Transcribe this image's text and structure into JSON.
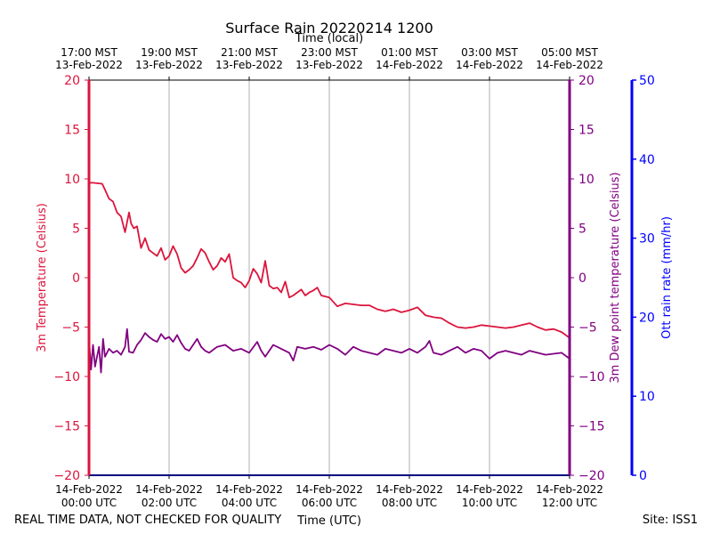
{
  "chart_data": {
    "type": "line",
    "title": "Surface Rain 20220214 1200",
    "top_xlabel": "Time (local)",
    "xlabel": "Time (UTC)",
    "ylabel_left": "3m Temperature (Celsius)",
    "ylabel_right1": "3m Dew point temperature (Celsius)",
    "ylabel_right2": "Ott rain rate (mm/hr)",
    "footer_left": "REAL TIME DATA, NOT CHECKED FOR QUALITY",
    "footer_right": "Site: ISS1",
    "xlim_hours": [
      0,
      12
    ],
    "ylim": [
      -20,
      20
    ],
    "y_ticks": [
      -20,
      -15,
      -10,
      -5,
      0,
      5,
      10,
      15,
      20
    ],
    "rain_ylim": [
      0,
      50
    ],
    "rain_ticks": [
      0,
      10,
      20,
      30,
      40,
      50
    ],
    "grid_x": true,
    "bottom_ticks": [
      {
        "h": 0,
        "line1": "14-Feb-2022",
        "line2": "00:00 UTC"
      },
      {
        "h": 2,
        "line1": "14-Feb-2022",
        "line2": "02:00 UTC"
      },
      {
        "h": 4,
        "line1": "14-Feb-2022",
        "line2": "04:00 UTC"
      },
      {
        "h": 6,
        "line1": "14-Feb-2022",
        "line2": "06:00 UTC"
      },
      {
        "h": 8,
        "line1": "14-Feb-2022",
        "line2": "08:00 UTC"
      },
      {
        "h": 10,
        "line1": "14-Feb-2022",
        "line2": "10:00 UTC"
      },
      {
        "h": 12,
        "line1": "14-Feb-2022",
        "line2": "12:00 UTC"
      }
    ],
    "top_ticks": [
      {
        "h": 0,
        "line1": "17:00 MST",
        "line2": "13-Feb-2022"
      },
      {
        "h": 2,
        "line1": "19:00 MST",
        "line2": "13-Feb-2022"
      },
      {
        "h": 4,
        "line1": "21:00 MST",
        "line2": "13-Feb-2022"
      },
      {
        "h": 6,
        "line1": "23:00 MST",
        "line2": "13-Feb-2022"
      },
      {
        "h": 8,
        "line1": "01:00 MST",
        "line2": "14-Feb-2022"
      },
      {
        "h": 10,
        "line1": "03:00 MST",
        "line2": "14-Feb-2022"
      },
      {
        "h": 12,
        "line1": "05:00 MST",
        "line2": "14-Feb-2022"
      }
    ],
    "colors": {
      "temperature": "#dc143c",
      "dewpoint": "#800080",
      "rain": "#0000ff",
      "grid": "#b0b0b0"
    },
    "series": [
      {
        "name": "3m Temperature",
        "color": "#dc143c",
        "x": [
          0,
          0.1,
          0.33,
          0.4,
          0.5,
          0.6,
          0.7,
          0.8,
          0.9,
          1.0,
          1.05,
          1.12,
          1.2,
          1.3,
          1.4,
          1.5,
          1.6,
          1.7,
          1.8,
          1.9,
          2.0,
          2.1,
          2.2,
          2.3,
          2.4,
          2.5,
          2.6,
          2.7,
          2.8,
          2.9,
          3.0,
          3.1,
          3.2,
          3.3,
          3.4,
          3.5,
          3.6,
          3.7,
          3.8,
          3.9,
          4.0,
          4.1,
          4.2,
          4.3,
          4.4,
          4.5,
          4.6,
          4.7,
          4.8,
          4.9,
          5.0,
          5.1,
          5.2,
          5.3,
          5.4,
          5.5,
          5.6,
          5.7,
          5.8,
          5.9,
          6.0,
          6.2,
          6.4,
          6.6,
          6.8,
          7.0,
          7.2,
          7.4,
          7.6,
          7.8,
          8.0,
          8.2,
          8.4,
          8.6,
          8.8,
          9.0,
          9.2,
          9.4,
          9.6,
          9.8,
          10.0,
          10.2,
          10.4,
          10.6,
          10.8,
          11.0,
          11.2,
          11.4,
          11.6,
          11.8,
          12.0
        ],
        "values": [
          9.6,
          9.6,
          9.5,
          8.9,
          8.0,
          7.7,
          6.6,
          6.2,
          4.6,
          6.6,
          5.5,
          5.0,
          5.2,
          3.0,
          4.0,
          2.8,
          2.5,
          2.2,
          3.0,
          1.8,
          2.2,
          3.2,
          2.4,
          1.0,
          0.5,
          0.8,
          1.2,
          2.0,
          2.9,
          2.5,
          1.6,
          0.8,
          1.2,
          2.0,
          1.6,
          2.4,
          0.0,
          -0.3,
          -0.5,
          -1.0,
          -0.3,
          0.9,
          0.4,
          -0.5,
          1.7,
          -0.8,
          -1.1,
          -1.0,
          -1.5,
          -0.4,
          -2.0,
          -1.8,
          -1.5,
          -1.2,
          -1.8,
          -1.5,
          -1.3,
          -1.0,
          -1.8,
          -1.9,
          -2.0,
          -2.9,
          -2.6,
          -2.7,
          -2.8,
          -2.8,
          -3.2,
          -3.4,
          -3.2,
          -3.5,
          -3.3,
          -3.0,
          -3.8,
          -4.0,
          -4.1,
          -4.6,
          -5.0,
          -5.1,
          -5.0,
          -4.8,
          -4.9,
          -5.0,
          -5.1,
          -5.0,
          -4.8,
          -4.6,
          -5.0,
          -5.3,
          -5.2,
          -5.5,
          -6.1
        ]
      },
      {
        "name": "3m Dew point temperature",
        "color": "#800080",
        "x": [
          0,
          0.05,
          0.1,
          0.15,
          0.2,
          0.25,
          0.3,
          0.35,
          0.4,
          0.5,
          0.6,
          0.7,
          0.8,
          0.9,
          0.95,
          1.0,
          1.1,
          1.2,
          1.3,
          1.4,
          1.5,
          1.6,
          1.7,
          1.8,
          1.9,
          2.0,
          2.1,
          2.2,
          2.3,
          2.4,
          2.5,
          2.6,
          2.7,
          2.8,
          2.9,
          3.0,
          3.2,
          3.4,
          3.6,
          3.8,
          4.0,
          4.2,
          4.3,
          4.4,
          4.6,
          4.8,
          5.0,
          5.1,
          5.2,
          5.4,
          5.6,
          5.8,
          6.0,
          6.2,
          6.4,
          6.6,
          6.8,
          7.0,
          7.2,
          7.4,
          7.6,
          7.8,
          8.0,
          8.2,
          8.4,
          8.5,
          8.6,
          8.8,
          9.0,
          9.2,
          9.4,
          9.6,
          9.8,
          10.0,
          10.2,
          10.4,
          10.6,
          10.8,
          11.0,
          11.2,
          11.4,
          11.6,
          11.8,
          12.0
        ],
        "values": [
          -6.2,
          -9.3,
          -6.8,
          -9.0,
          -8.0,
          -7.0,
          -9.6,
          -6.2,
          -8.0,
          -7.2,
          -7.6,
          -7.4,
          -7.8,
          -7.0,
          -5.2,
          -7.5,
          -7.6,
          -6.8,
          -6.3,
          -5.6,
          -6.0,
          -6.3,
          -6.5,
          -5.7,
          -6.2,
          -6.0,
          -6.5,
          -5.8,
          -6.6,
          -7.2,
          -7.4,
          -6.8,
          -6.2,
          -7.0,
          -7.4,
          -7.6,
          -7.0,
          -6.8,
          -7.4,
          -7.2,
          -7.6,
          -6.5,
          -7.4,
          -8.0,
          -6.8,
          -7.2,
          -7.6,
          -8.4,
          -7.0,
          -7.2,
          -7.0,
          -7.3,
          -6.8,
          -7.2,
          -7.8,
          -7.0,
          -7.4,
          -7.6,
          -7.8,
          -7.2,
          -7.4,
          -7.6,
          -7.2,
          -7.6,
          -7.0,
          -6.4,
          -7.6,
          -7.8,
          -7.4,
          -7.0,
          -7.6,
          -7.2,
          -7.4,
          -8.2,
          -7.6,
          -7.4,
          -7.6,
          -7.8,
          -7.4,
          -7.6,
          -7.8,
          -7.7,
          -7.6,
          -8.2
        ]
      },
      {
        "name": "Ott rain rate",
        "color": "#0000ff",
        "x": [
          0,
          12
        ],
        "values": [
          0,
          0
        ]
      }
    ]
  }
}
